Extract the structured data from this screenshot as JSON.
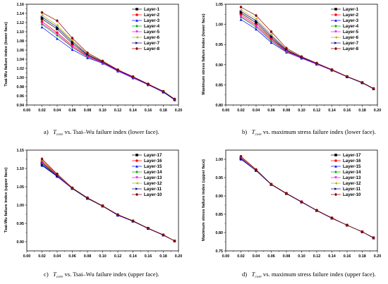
{
  "chart_data": [
    {
      "type": "line",
      "panel": "a",
      "caption": {
        "letter": "a)",
        "var": "T",
        "sub": "core",
        "text": " vs. Tsai–Wu failure index (lower face)."
      },
      "ylabel": "Tsai-Wu failure index (lower face)",
      "xlabel": "",
      "xlim": [
        0.0,
        0.2
      ],
      "ylim": [
        0.94,
        1.16
      ],
      "xticks": [
        "0.00",
        "0.02",
        "0.04",
        "0.06",
        "0.08",
        "0.10",
        "0.12",
        "0.14",
        "0.16",
        "0.18",
        "0.20"
      ],
      "yticks": [
        "0.94",
        "0.96",
        "0.98",
        "1.00",
        "1.02",
        "1.04",
        "1.06",
        "1.08",
        "1.10",
        "1.12",
        "1.14",
        "1.16"
      ],
      "legend_position": "top-right",
      "x": [
        0.02,
        0.04,
        0.06,
        0.08,
        0.1,
        0.12,
        0.14,
        0.16,
        0.18,
        0.195
      ],
      "series": [
        {
          "name": "Layer-1",
          "color": "#000000",
          "marker": "square",
          "values": [
            1.128,
            1.106,
            1.074,
            1.049,
            1.034,
            1.016,
            1.001,
            0.985,
            0.969,
            0.952
          ]
        },
        {
          "name": "Layer-2",
          "color": "#ff0000",
          "marker": "circle",
          "values": [
            1.122,
            1.098,
            1.07,
            1.047,
            1.033,
            1.016,
            1.0,
            0.985,
            0.969,
            0.952
          ]
        },
        {
          "name": "Layer-3",
          "color": "#0000ff",
          "marker": "triangle",
          "values": [
            1.11,
            1.085,
            1.061,
            1.043,
            1.031,
            1.014,
            0.999,
            0.984,
            0.968,
            0.951
          ]
        },
        {
          "name": "Layer-4",
          "color": "#00aa00",
          "marker": "diamond",
          "values": [
            1.116,
            1.092,
            1.066,
            1.045,
            1.032,
            1.015,
            1.0,
            0.984,
            0.969,
            0.952
          ]
        },
        {
          "name": "Layer-5",
          "color": "#ff00ff",
          "marker": "triangle-down",
          "values": [
            1.118,
            1.095,
            1.067,
            1.046,
            1.032,
            1.015,
            1.0,
            0.984,
            0.969,
            0.952
          ]
        },
        {
          "name": "Layer-6",
          "color": "#b0b000",
          "marker": "triangle-left",
          "values": [
            1.136,
            1.114,
            1.081,
            1.052,
            1.035,
            1.017,
            1.001,
            0.985,
            0.97,
            0.953
          ]
        },
        {
          "name": "Layer-7",
          "color": "#000080",
          "marker": "triangle-right",
          "values": [
            1.132,
            1.11,
            1.078,
            1.05,
            1.034,
            1.016,
            1.001,
            0.985,
            0.969,
            0.952
          ]
        },
        {
          "name": "Layer-8",
          "color": "#8b0000",
          "marker": "hexagon",
          "values": [
            1.142,
            1.124,
            1.086,
            1.054,
            1.036,
            1.017,
            1.002,
            0.986,
            0.97,
            0.953
          ]
        }
      ]
    },
    {
      "type": "line",
      "panel": "b",
      "caption": {
        "letter": "b)",
        "var": "T",
        "sub": "core",
        "text": " vs. maximum stress failure index (lower face)."
      },
      "ylabel": "Maximum stress failure index (lower face)",
      "xlabel": "",
      "xlim": [
        0.0,
        0.2
      ],
      "ylim": [
        0.8,
        1.05
      ],
      "xticks": [
        "0.00",
        "0.02",
        "0.04",
        "0.06",
        "0.08",
        "0.10",
        "0.12",
        "0.14",
        "0.16",
        "0.18",
        "0.20"
      ],
      "yticks": [
        "0.80",
        "0.85",
        "0.90",
        "0.95",
        "1.00",
        "1.05"
      ],
      "legend_position": "top-right",
      "x": [
        0.02,
        0.04,
        0.06,
        0.08,
        0.1,
        0.12,
        0.14,
        0.16,
        0.18,
        0.195
      ],
      "series": [
        {
          "name": "Layer-1",
          "color": "#000000",
          "marker": "square",
          "values": [
            1.028,
            1.004,
            0.967,
            0.935,
            0.918,
            0.902,
            0.887,
            0.87,
            0.855,
            0.84
          ]
        },
        {
          "name": "Layer-2",
          "color": "#ff0000",
          "marker": "circle",
          "values": [
            1.024,
            0.999,
            0.964,
            0.934,
            0.917,
            0.902,
            0.886,
            0.87,
            0.855,
            0.84
          ]
        },
        {
          "name": "Layer-3",
          "color": "#0000ff",
          "marker": "triangle",
          "values": [
            1.012,
            0.988,
            0.955,
            0.931,
            0.916,
            0.901,
            0.886,
            0.87,
            0.855,
            0.84
          ]
        },
        {
          "name": "Layer-4",
          "color": "#00aa00",
          "marker": "diamond",
          "values": [
            1.018,
            0.993,
            0.959,
            0.932,
            0.917,
            0.902,
            0.886,
            0.87,
            0.855,
            0.84
          ]
        },
        {
          "name": "Layer-5",
          "color": "#ff00ff",
          "marker": "triangle-down",
          "values": [
            1.02,
            0.996,
            0.961,
            0.933,
            0.917,
            0.902,
            0.886,
            0.87,
            0.855,
            0.84
          ]
        },
        {
          "name": "Layer-6",
          "color": "#b0b000",
          "marker": "triangle-left",
          "values": [
            1.036,
            1.014,
            0.975,
            0.938,
            0.919,
            0.903,
            0.887,
            0.871,
            0.856,
            0.841
          ]
        },
        {
          "name": "Layer-7",
          "color": "#000080",
          "marker": "triangle-right",
          "values": [
            1.032,
            1.009,
            0.971,
            0.937,
            0.918,
            0.903,
            0.887,
            0.87,
            0.855,
            0.84
          ]
        },
        {
          "name": "Layer-8",
          "color": "#8b0000",
          "marker": "hexagon",
          "values": [
            1.043,
            1.022,
            0.982,
            0.941,
            0.92,
            0.904,
            0.888,
            0.871,
            0.856,
            0.841
          ]
        }
      ]
    },
    {
      "type": "line",
      "panel": "c",
      "caption": {
        "letter": "c)",
        "var": "T",
        "sub": "core",
        "text": " vs. Tsai–Wu failure index (upper face)."
      },
      "ylabel": "Tsai-Wu failure index (upper face)",
      "xlabel": "",
      "xlim": [
        0.0,
        0.2
      ],
      "ylim": [
        0.875,
        1.15
      ],
      "xticks": [
        "0.00",
        "0.02",
        "0.04",
        "0.06",
        "0.08",
        "0.10",
        "0.12",
        "0.14",
        "0.16",
        "0.18",
        "0.20"
      ],
      "yticks": [
        "0.90",
        "0.95",
        "1.00",
        "1.05",
        "1.10",
        "1.15"
      ],
      "legend_position": "top-right",
      "x": [
        0.02,
        0.04,
        0.06,
        0.08,
        0.1,
        0.12,
        0.14,
        0.16,
        0.18,
        0.195
      ],
      "series": [
        {
          "name": "Layer-17",
          "color": "#000000",
          "marker": "square",
          "values": [
            1.115,
            1.081,
            1.046,
            1.019,
            0.998,
            0.973,
            0.956,
            0.937,
            0.918,
            0.902
          ]
        },
        {
          "name": "Layer-16",
          "color": "#ff0000",
          "marker": "circle",
          "values": [
            1.12,
            1.083,
            1.046,
            1.019,
            0.998,
            0.974,
            0.957,
            0.937,
            0.918,
            0.902
          ]
        },
        {
          "name": "Layer-15",
          "color": "#0000ff",
          "marker": "triangle",
          "values": [
            1.108,
            1.078,
            1.045,
            1.018,
            0.997,
            0.972,
            0.956,
            0.936,
            0.918,
            0.902
          ]
        },
        {
          "name": "Layer-14",
          "color": "#00aa00",
          "marker": "diamond",
          "values": [
            1.112,
            1.08,
            1.045,
            1.018,
            0.997,
            0.973,
            0.956,
            0.937,
            0.918,
            0.902
          ]
        },
        {
          "name": "Layer-13",
          "color": "#ff00ff",
          "marker": "triangle-down",
          "values": [
            1.117,
            1.082,
            1.046,
            1.019,
            0.998,
            0.973,
            0.956,
            0.937,
            0.918,
            0.902
          ]
        },
        {
          "name": "Layer-12",
          "color": "#b0b000",
          "marker": "triangle-left",
          "values": [
            1.123,
            1.084,
            1.047,
            1.019,
            0.998,
            0.974,
            0.957,
            0.937,
            0.918,
            0.902
          ]
        },
        {
          "name": "Layer-11",
          "color": "#000080",
          "marker": "triangle-right",
          "values": [
            1.11,
            1.079,
            1.045,
            1.018,
            0.997,
            0.973,
            0.956,
            0.936,
            0.918,
            0.902
          ]
        },
        {
          "name": "Layer-10",
          "color": "#8b0000",
          "marker": "hexagon",
          "values": [
            1.126,
            1.085,
            1.047,
            1.02,
            0.998,
            0.974,
            0.957,
            0.937,
            0.919,
            0.902
          ]
        }
      ]
    },
    {
      "type": "line",
      "panel": "d",
      "caption": {
        "letter": "d)",
        "var": "T",
        "sub": "core",
        "text": " vs. maximum stress failure index (upper face)."
      },
      "ylabel": "Maximum stress failure index (upper face)",
      "xlabel": "",
      "xlim": [
        0.0,
        0.2
      ],
      "ylim": [
        0.75,
        1.025
      ],
      "xticks": [
        "0.00",
        "0.02",
        "0.04",
        "0.06",
        "0.08",
        "0.10",
        "0.12",
        "0.14",
        "0.16",
        "0.18",
        "0.20"
      ],
      "yticks": [
        "0.75",
        "0.80",
        "0.85",
        "0.90",
        "0.95",
        "1.00"
      ],
      "legend_position": "top-right",
      "x": [
        0.02,
        0.04,
        0.06,
        0.08,
        0.1,
        0.12,
        0.14,
        0.16,
        0.18,
        0.195
      ],
      "series": [
        {
          "name": "Layer-17",
          "color": "#000000",
          "marker": "square",
          "values": [
            1.003,
            0.97,
            0.931,
            0.907,
            0.884,
            0.86,
            0.839,
            0.82,
            0.802,
            0.786
          ]
        },
        {
          "name": "Layer-16",
          "color": "#ff0000",
          "marker": "circle",
          "values": [
            1.007,
            0.971,
            0.932,
            0.907,
            0.884,
            0.86,
            0.84,
            0.82,
            0.802,
            0.786
          ]
        },
        {
          "name": "Layer-15",
          "color": "#0000ff",
          "marker": "triangle",
          "values": [
            1.0,
            0.969,
            0.931,
            0.906,
            0.883,
            0.86,
            0.839,
            0.82,
            0.802,
            0.785
          ]
        },
        {
          "name": "Layer-14",
          "color": "#00aa00",
          "marker": "diamond",
          "values": [
            1.002,
            0.97,
            0.931,
            0.906,
            0.884,
            0.86,
            0.839,
            0.82,
            0.802,
            0.786
          ]
        },
        {
          "name": "Layer-13",
          "color": "#ff00ff",
          "marker": "triangle-down",
          "values": [
            1.004,
            0.97,
            0.931,
            0.907,
            0.884,
            0.86,
            0.84,
            0.82,
            0.802,
            0.786
          ]
        },
        {
          "name": "Layer-12",
          "color": "#b0b000",
          "marker": "triangle-left",
          "values": [
            1.006,
            0.971,
            0.932,
            0.907,
            0.884,
            0.86,
            0.84,
            0.82,
            0.802,
            0.786
          ]
        },
        {
          "name": "Layer-11",
          "color": "#000080",
          "marker": "triangle-right",
          "values": [
            1.001,
            0.969,
            0.931,
            0.906,
            0.883,
            0.86,
            0.839,
            0.82,
            0.802,
            0.785
          ]
        },
        {
          "name": "Layer-10",
          "color": "#8b0000",
          "marker": "hexagon",
          "values": [
            1.008,
            0.972,
            0.932,
            0.907,
            0.884,
            0.861,
            0.84,
            0.82,
            0.802,
            0.786
          ]
        }
      ]
    }
  ]
}
